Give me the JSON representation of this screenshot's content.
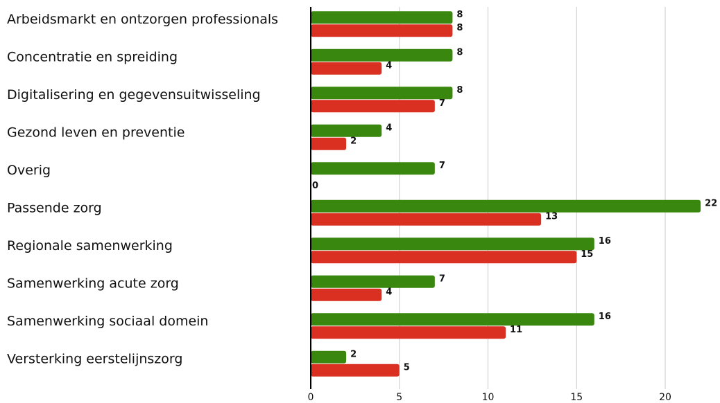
{
  "chart_data": {
    "type": "bar",
    "orientation": "horizontal",
    "categories": [
      "Arbeidsmarkt en ontzorgen professionals",
      "Concentratie en spreiding",
      "Digitalisering en gegevensuitwisseling",
      "Gezond leven en preventie",
      "Overig",
      "Passende zorg",
      "Regionale samenwerking",
      "Samenwerking acute zorg",
      "Samenwerking sociaal domein",
      "Versterking eerstelijnszorg"
    ],
    "series": [
      {
        "color": "#3a870f",
        "values": [
          8,
          8,
          8,
          4,
          7,
          22,
          16,
          7,
          16,
          2
        ]
      },
      {
        "color": "#d93022",
        "values": [
          8,
          4,
          7,
          2,
          0,
          13,
          15,
          4,
          11,
          5
        ]
      }
    ],
    "xlim": [
      0,
      23
    ],
    "xticks": [
      0,
      5,
      10,
      15,
      20
    ],
    "grid": true,
    "legend": false
  }
}
